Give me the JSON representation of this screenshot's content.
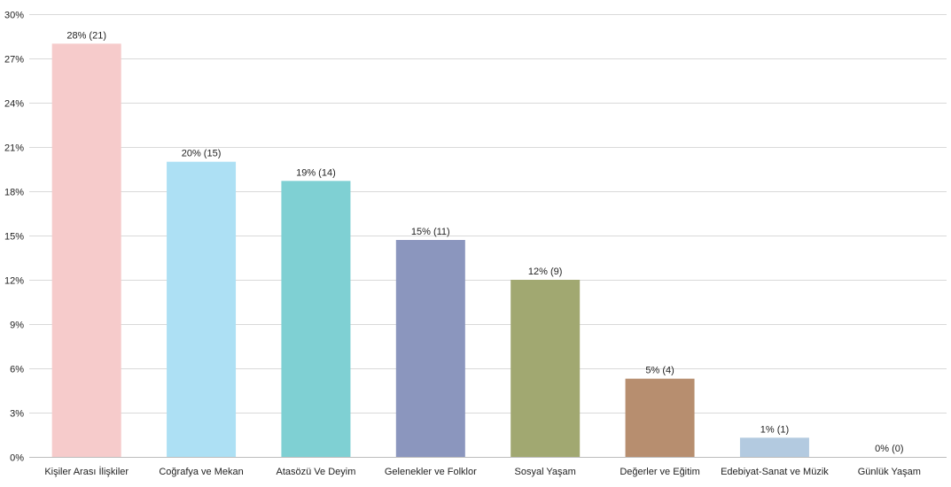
{
  "chart_data": {
    "type": "bar",
    "title": "",
    "xlabel": "",
    "ylabel": "",
    "ylim": [
      0,
      30
    ],
    "y_ticks": [
      0,
      3,
      6,
      9,
      12,
      15,
      18,
      21,
      24,
      27,
      30
    ],
    "y_tick_suffix": "%",
    "grid": true,
    "legend": "none",
    "categories": [
      "Kişiler Arası İlişkiler",
      "Coğrafya ve Mekan",
      "Atasözü Ve Deyim",
      "Gelenekler ve Folklor",
      "Sosyal Yaşam",
      "Değerler ve Eğitim",
      "Edebiyat-Sanat ve Müzik",
      "Günlük Yaşam"
    ],
    "values": [
      28,
      20,
      18.7,
      14.7,
      12,
      5.3,
      1.3,
      0
    ],
    "counts": [
      21,
      15,
      14,
      11,
      9,
      4,
      1,
      0
    ],
    "data_labels": [
      "28% (21)",
      "20% (15)",
      "19% (14)",
      "15% (11)",
      "12% (9)",
      "5% (4)",
      "1% (1)",
      "0% (0)"
    ],
    "colors": [
      "#f6cbcb",
      "#ade0f4",
      "#7fd0d3",
      "#8b96be",
      "#a1a871",
      "#b78e6f",
      "#b3cae0",
      "#cccccc"
    ],
    "grid_color": "#d9d9d9",
    "text_color": "#222222"
  }
}
